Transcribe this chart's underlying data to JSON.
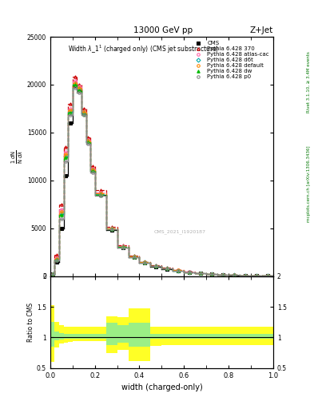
{
  "title_top": "13000 GeV pp",
  "title_right": "Z+Jet",
  "plot_title": "Widthλ_1¹ (charged only) (CMS jet substructure)",
  "xlabel": "width (charged-only)",
  "ylabel_ratio": "Ratio to CMS",
  "right_label_top": "Rivet 3.1.10, ≥ 3.4M events",
  "right_label_bottom": "mcplots.cern.ch [arXiv:1306.3436]",
  "watermark": "CMS_2021_I1920187",
  "xlim": [
    0,
    1
  ],
  "ylim_main": [
    0,
    25000
  ],
  "ylim_ratio": [
    0.5,
    2.0
  ],
  "x_bins": [
    0.0,
    0.02,
    0.04,
    0.06,
    0.08,
    0.1,
    0.12,
    0.14,
    0.16,
    0.18,
    0.2,
    0.25,
    0.3,
    0.35,
    0.4,
    0.45,
    0.5,
    0.55,
    0.6,
    0.65,
    0.7,
    0.75,
    0.8,
    0.85,
    0.9,
    0.95,
    1.0
  ],
  "cms_y": [
    200,
    1500,
    5000,
    10500,
    16000,
    19800,
    19500,
    17000,
    14000,
    11000,
    8500,
    4800,
    3000,
    2000,
    1400,
    1000,
    750,
    550,
    380,
    270,
    190,
    130,
    90,
    60,
    40,
    20
  ],
  "pythia_370_y": [
    250,
    2200,
    7500,
    13500,
    18000,
    20800,
    20000,
    17500,
    14500,
    11500,
    9000,
    5100,
    3200,
    2100,
    1500,
    1100,
    850,
    620,
    450,
    320,
    230,
    160,
    110,
    75,
    50,
    28
  ],
  "pythia_atlas_y": [
    220,
    1900,
    7000,
    13000,
    17500,
    20400,
    19800,
    17200,
    14200,
    11200,
    8700,
    5000,
    3100,
    2050,
    1460,
    1060,
    820,
    600,
    430,
    305,
    215,
    150,
    105,
    70,
    47,
    25
  ],
  "pythia_d6t_y": [
    200,
    1750,
    6500,
    12500,
    17200,
    20100,
    19600,
    17100,
    14100,
    11100,
    8600,
    4950,
    3070,
    2020,
    1440,
    1050,
    810,
    590,
    420,
    298,
    210,
    145,
    102,
    68,
    45,
    24
  ],
  "pythia_default_y": [
    210,
    1800,
    6700,
    12700,
    17300,
    20200,
    19700,
    17150,
    14150,
    11150,
    8650,
    4970,
    3080,
    2030,
    1450,
    1055,
    815,
    595,
    425,
    300,
    212,
    147,
    103,
    69,
    46,
    24
  ],
  "pythia_dw_y": [
    195,
    1700,
    6400,
    12400,
    17100,
    20000,
    19400,
    16950,
    13950,
    10950,
    8500,
    4900,
    3040,
    2000,
    1420,
    1030,
    800,
    580,
    410,
    290,
    205,
    142,
    100,
    67,
    44,
    23
  ],
  "pythia_p0_y": [
    180,
    1600,
    6000,
    12000,
    16800,
    19700,
    19200,
    16800,
    13800,
    10850,
    8400,
    4850,
    3000,
    1980,
    1400,
    1020,
    785,
    570,
    400,
    284,
    200,
    138,
    97,
    65,
    43,
    22
  ],
  "ratio_yellow_lo": [
    0.6,
    0.83,
    0.9,
    0.92,
    0.93,
    0.94,
    0.94,
    0.94,
    0.94,
    0.94,
    0.94,
    0.75,
    0.8,
    0.62,
    0.62,
    0.86,
    0.87,
    0.87,
    0.87,
    0.87,
    0.87,
    0.87,
    0.87,
    0.87,
    0.87,
    0.87
  ],
  "ratio_yellow_hi": [
    1.52,
    1.25,
    1.2,
    1.18,
    1.18,
    1.18,
    1.18,
    1.18,
    1.18,
    1.18,
    1.18,
    1.35,
    1.33,
    1.48,
    1.48,
    1.18,
    1.18,
    1.18,
    1.18,
    1.18,
    1.18,
    1.18,
    1.18,
    1.18,
    1.18,
    1.18
  ],
  "ratio_green_lo": [
    0.85,
    0.95,
    0.97,
    0.98,
    0.98,
    0.98,
    0.98,
    0.98,
    0.98,
    0.98,
    0.98,
    0.87,
    0.91,
    0.85,
    0.85,
    0.98,
    0.98,
    0.98,
    0.98,
    0.98,
    0.98,
    0.98,
    0.98,
    0.98,
    0.98,
    0.98
  ],
  "ratio_green_hi": [
    1.25,
    1.1,
    1.07,
    1.06,
    1.06,
    1.06,
    1.06,
    1.06,
    1.06,
    1.06,
    1.06,
    1.24,
    1.2,
    1.24,
    1.24,
    1.06,
    1.06,
    1.06,
    1.06,
    1.06,
    1.06,
    1.06,
    1.06,
    1.06,
    1.06,
    1.06
  ],
  "colors": {
    "cms": "#000000",
    "pythia_370": "#cc0000",
    "pythia_atlas": "#ff66aa",
    "pythia_d6t": "#00aaaa",
    "pythia_default": "#ff8800",
    "pythia_dw": "#00bb00",
    "pythia_p0": "#888888"
  },
  "legend_entries": [
    "CMS",
    "Pythia 6.428 370",
    "Pythia 6.428 atlas-cac",
    "Pythia 6.428 d6t",
    "Pythia 6.428 default",
    "Pythia 6.428 dw",
    "Pythia 6.428 p0"
  ]
}
